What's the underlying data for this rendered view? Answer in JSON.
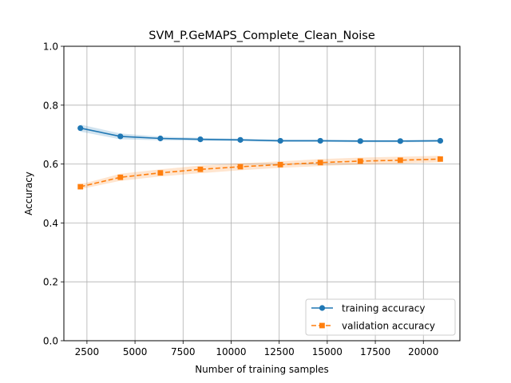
{
  "chart_data": {
    "type": "line",
    "title": "SVM_P.GeMAPS_Complete_Clean_Noise",
    "xlabel": "Number of training samples",
    "ylabel": "Accuracy",
    "xlim": [
      1300,
      21900
    ],
    "ylim": [
      0.0,
      1.0
    ],
    "x_ticks": [
      2500,
      5000,
      7500,
      10000,
      12500,
      15000,
      17500,
      20000
    ],
    "x_tick_labels": [
      "2500",
      "5000",
      "7500",
      "10000",
      "12500",
      "15000",
      "17500",
      "20000"
    ],
    "y_ticks": [
      0.0,
      0.2,
      0.4,
      0.6,
      0.8,
      1.0
    ],
    "y_tick_labels": [
      "0.0",
      "0.2",
      "0.4",
      "0.6",
      "0.8",
      "1.0"
    ],
    "grid": true,
    "legend_position": "lower-right",
    "x": [
      2160,
      4240,
      6320,
      8400,
      10480,
      12560,
      14640,
      16720,
      18800,
      20880
    ],
    "series": [
      {
        "name": "training accuracy",
        "color": "#1f77b4",
        "marker": "circle",
        "linestyle": "solid",
        "values": [
          0.722,
          0.694,
          0.687,
          0.684,
          0.682,
          0.679,
          0.679,
          0.678,
          0.678,
          0.679
        ],
        "band": [
          0.012,
          0.01,
          0.006,
          0.005,
          0.004,
          0.004,
          0.004,
          0.004,
          0.004,
          0.004
        ]
      },
      {
        "name": "validation accuracy",
        "color": "#ff7f0e",
        "marker": "square",
        "linestyle": "dashed",
        "values": [
          0.523,
          0.555,
          0.57,
          0.582,
          0.591,
          0.598,
          0.605,
          0.61,
          0.613,
          0.617
        ],
        "band": [
          0.008,
          0.012,
          0.012,
          0.013,
          0.012,
          0.011,
          0.012,
          0.012,
          0.012,
          0.011
        ]
      }
    ]
  }
}
